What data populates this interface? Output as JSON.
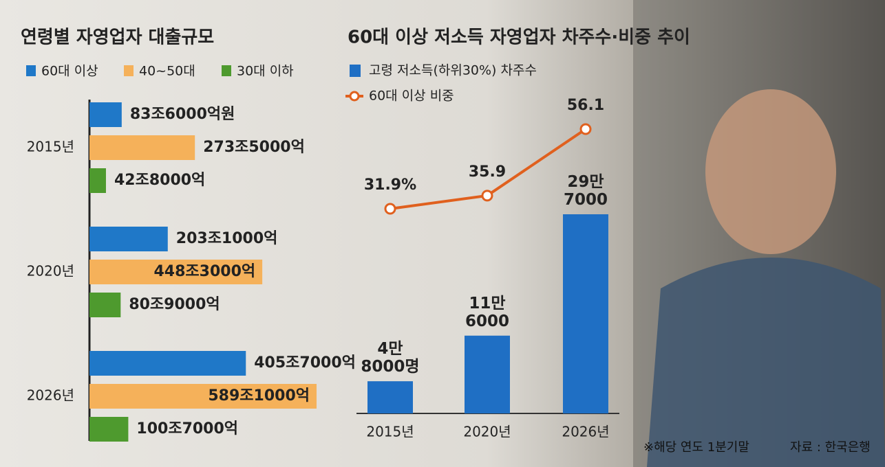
{
  "chart_data": [
    {
      "type": "hbar",
      "title": "연령별 자영업자 대출규모",
      "categories": [
        "2015년",
        "2020년",
        "2026년"
      ],
      "series": [
        {
          "name": "60대 이상",
          "color": "#1f78c8",
          "values": [
            83.6,
            203.1,
            405.7
          ],
          "value_labels": [
            "83조6000억원",
            "203조1000억",
            "405조7000억"
          ]
        },
        {
          "name": "40~50대",
          "color": "#f5b15a",
          "values": [
            273.5,
            448.3,
            589.1
          ],
          "value_labels": [
            "273조5000억",
            "448조3000억",
            "589조1000억"
          ]
        },
        {
          "name": "30대 이하",
          "color": "#4e9a2e",
          "values": [
            42.8,
            80.9,
            100.7
          ],
          "value_labels": [
            "42조8000억",
            "80조9000억",
            "100조7000억"
          ]
        }
      ]
    },
    {
      "type": "bar-line",
      "title": "60대 이상 저소득 자영업자 차주수·비중 추이",
      "categories": [
        "2015년",
        "2020년",
        "2026년"
      ],
      "series": [
        {
          "name": "고령 저소득(하위30%) 차주수",
          "type": "bar",
          "color": "#1f6fc4",
          "values": [
            48000,
            116000,
            297000
          ],
          "value_labels": [
            "4만\n8000명",
            "11만\n6000",
            "29만\n7000"
          ]
        },
        {
          "name": "60대 이상 비중",
          "type": "line",
          "axis": "y2",
          "color": "#e0601e",
          "values": [
            31.9,
            35.9,
            56.1
          ],
          "value_labels": [
            "31.9%",
            "35.9",
            "56.1"
          ]
        }
      ],
      "notes": [
        "※해당 연도 1분기말",
        "자료 : 한국은행"
      ]
    }
  ]
}
